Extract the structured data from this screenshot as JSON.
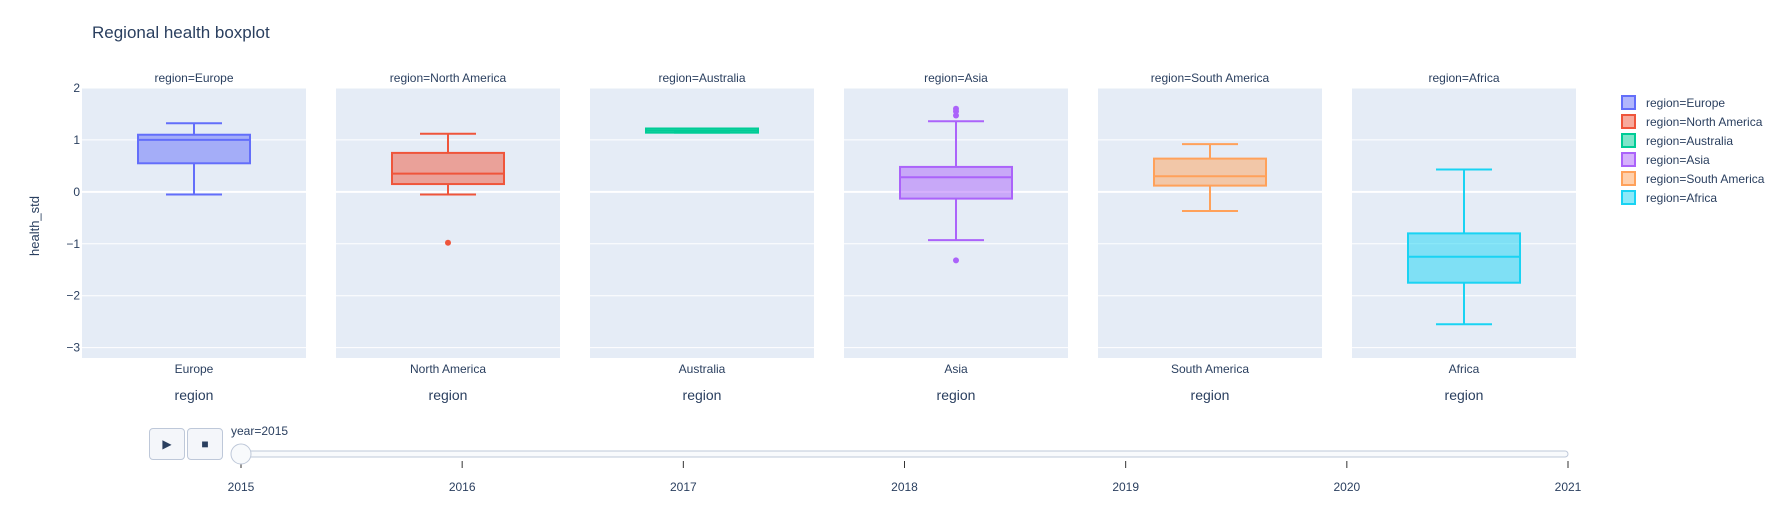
{
  "chart_data": {
    "type": "box",
    "title": "Regional health boxplot",
    "ylabel": "health_std",
    "xlabel": "region",
    "ylim": [
      -3.2,
      2.0
    ],
    "yticks": [
      2,
      1,
      0,
      -1,
      -2,
      -3
    ],
    "panels": [
      {
        "facet_label": "region=Europe",
        "category": "Europe",
        "color": "#636efa",
        "min": -0.05,
        "q1": 0.55,
        "median": 1.0,
        "q3": 1.1,
        "max": 1.32,
        "outliers": []
      },
      {
        "facet_label": "region=North America",
        "category": "North America",
        "color": "#ef553b",
        "min": -0.05,
        "q1": 0.15,
        "median": 0.35,
        "q3": 0.75,
        "max": 1.12,
        "outliers": [
          -0.98
        ]
      },
      {
        "facet_label": "region=Australia",
        "category": "Australia",
        "color": "#00cc96",
        "min": 1.14,
        "q1": 1.14,
        "median": 1.18,
        "q3": 1.22,
        "max": 1.22,
        "outliers": []
      },
      {
        "facet_label": "region=Asia",
        "category": "Asia",
        "color": "#ab63fa",
        "min": -0.93,
        "q1": -0.13,
        "median": 0.28,
        "q3": 0.48,
        "max": 1.36,
        "outliers": [
          1.47,
          1.55,
          1.6,
          -1.32
        ]
      },
      {
        "facet_label": "region=South America",
        "category": "South America",
        "color": "#ffa15a",
        "min": -0.37,
        "q1": 0.12,
        "median": 0.3,
        "q3": 0.64,
        "max": 0.92,
        "outliers": []
      },
      {
        "facet_label": "region=Africa",
        "category": "Africa",
        "color": "#19d3f3",
        "min": -2.55,
        "q1": -1.75,
        "median": -1.25,
        "q3": -0.8,
        "max": 0.43,
        "outliers": []
      }
    ],
    "legend": [
      "region=Europe",
      "region=North America",
      "region=Australia",
      "region=Asia",
      "region=South America",
      "region=Africa"
    ],
    "legend_position": "right"
  },
  "slider": {
    "current_label": "year=2015",
    "ticks": [
      "2015",
      "2016",
      "2017",
      "2018",
      "2019",
      "2020",
      "2021"
    ],
    "value": "2015",
    "play_icon": "play-icon",
    "stop_icon": "stop-icon"
  }
}
